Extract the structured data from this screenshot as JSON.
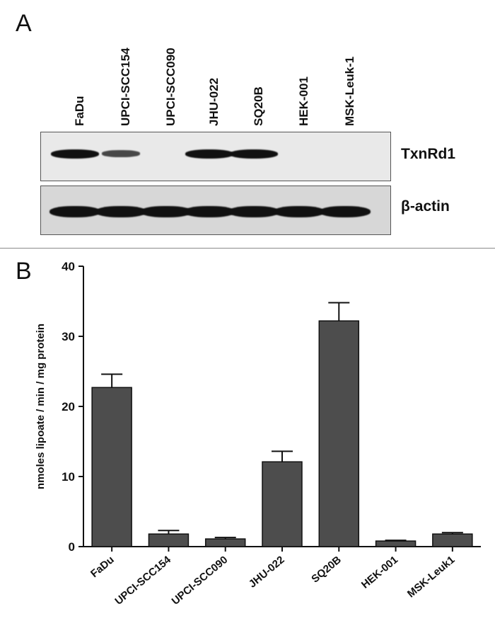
{
  "panels": {
    "a": "A",
    "b": "B"
  },
  "lanes": [
    "FaDu",
    "UPCI-SCC154",
    "UPCI-SCC090",
    "JHU-022",
    "SQ20B",
    "HEK-001",
    "MSK-Leuk-1"
  ],
  "blots": {
    "txnrd1_label": "TxnRd1",
    "actin_label": "β-actin",
    "txnrd1_intensity": [
      1.0,
      0.45,
      0.0,
      1.0,
      1.0,
      0.0,
      0.0
    ],
    "actin_intensity": [
      1.0,
      1.0,
      1.0,
      1.0,
      1.0,
      1.0,
      1.0
    ]
  },
  "chart_data": {
    "type": "bar",
    "categories": [
      "FaDu",
      "UPCI-SCC154",
      "UPCI-SCC090",
      "JHU-022",
      "SQ20B",
      "HEK-001",
      "MSK-Leuk1"
    ],
    "values": [
      22.7,
      1.8,
      1.1,
      12.1,
      32.2,
      0.8,
      1.8
    ],
    "errors": [
      1.9,
      0.5,
      0.2,
      1.5,
      2.6,
      0.1,
      0.2
    ],
    "title": "",
    "xlabel": "",
    "ylabel": "nmoles lipoate / min / mg protein",
    "ylim": [
      0,
      40
    ],
    "yticks": [
      0,
      10,
      20,
      30,
      40
    ],
    "bar_color": "#4d4d4d",
    "grid": false
  }
}
